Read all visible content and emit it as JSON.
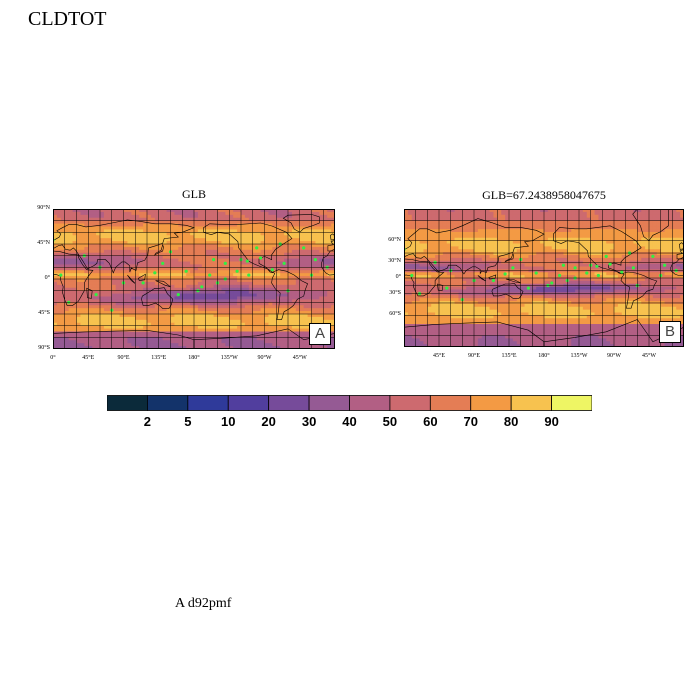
{
  "page": {
    "title": "CLDTOT",
    "footer": "A  d92pmf"
  },
  "colors": {
    "palette": [
      "#0b2a3a",
      "#13336a",
      "#2f3a9a",
      "#513e9e",
      "#764b9a",
      "#955a94",
      "#b25f84",
      "#cd6a6f",
      "#e47d55",
      "#f39a44",
      "#f7c24f",
      "#eef564"
    ],
    "land_outline": "#000000",
    "station_marker": "#33ee44"
  },
  "panels": [
    {
      "id": "A",
      "title": "GLB",
      "letter": "A",
      "projection": "cylindrical-equidistant",
      "lat_ticks": [
        "90°N",
        "45°N",
        "0°",
        "45°S",
        "90°S"
      ],
      "lon_ticks": [
        "0°",
        "45°E",
        "90°E",
        "135°E",
        "180°",
        "135°W",
        "90°W",
        "45°W"
      ]
    },
    {
      "id": "B",
      "title": "GLB=67.2438958047675",
      "letter": "B",
      "projection": "mercator",
      "lat_ticks": [
        "60°N",
        "30°N",
        "0°",
        "30°S",
        "60°S"
      ],
      "lon_ticks": [
        "45°E",
        "90°E",
        "135°E",
        "180°",
        "135°W",
        "90°W",
        "45°W"
      ]
    }
  ],
  "colorbar": {
    "levels": [
      "2",
      "5",
      "10",
      "20",
      "30",
      "40",
      "50",
      "60",
      "70",
      "80",
      "90"
    ]
  }
}
